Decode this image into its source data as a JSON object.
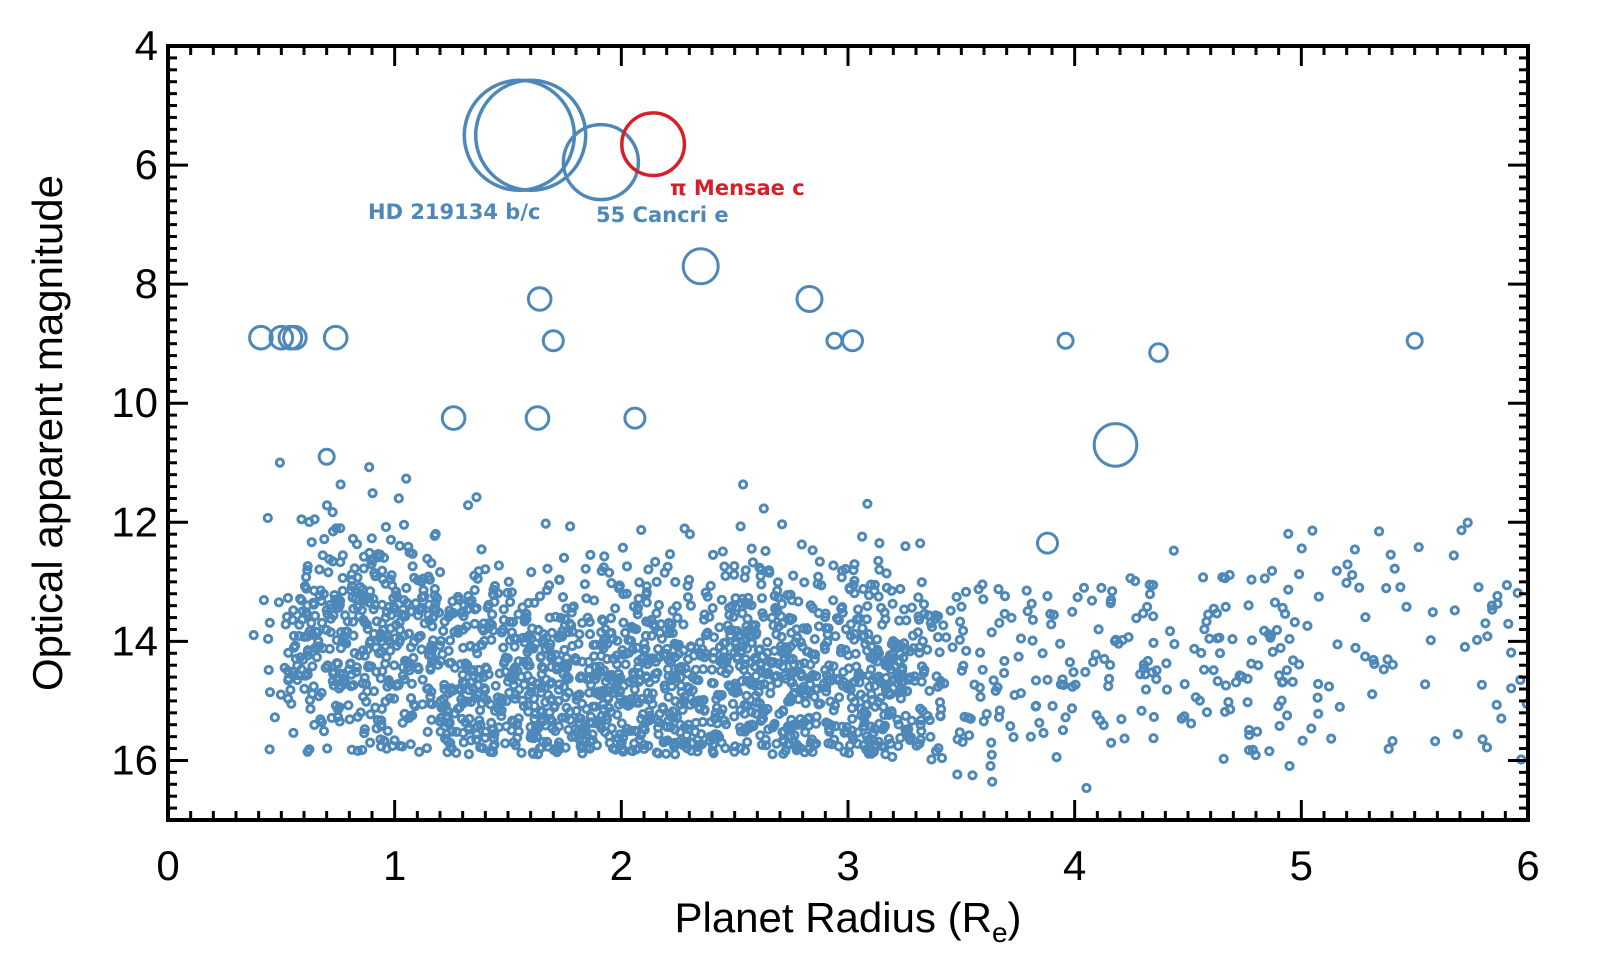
{
  "chart_data": {
    "type": "scatter",
    "title": "",
    "xlabel": "Planet Radius (R",
    "xlabel_sub": "e",
    "xlabel_close": ")",
    "ylabel": "Optical apparent magnitude",
    "xlim": [
      0,
      6
    ],
    "ylim": [
      17,
      4
    ],
    "y_inverted": true,
    "x_ticks": [
      "0",
      "1",
      "2",
      "3",
      "4",
      "5",
      "6"
    ],
    "y_ticks": [
      "4",
      "6",
      "8",
      "10",
      "12",
      "14",
      "16"
    ],
    "grid": false,
    "colors": {
      "points": "#4d88b8",
      "highlight": "#d91e2a",
      "axis": "#000000"
    },
    "highlighted": [
      {
        "label": "HD 219134 b/c",
        "color": "#4d88b8",
        "points": [
          {
            "x": 1.55,
            "y": 5.5,
            "size": 2.2
          },
          {
            "x": 1.6,
            "y": 5.5,
            "size": 2.2
          }
        ]
      },
      {
        "label": "55 Cancri e",
        "color": "#4d88b8",
        "points": [
          {
            "x": 1.91,
            "y": 5.95,
            "size": 1.5
          }
        ]
      },
      {
        "label": "π Mensae c",
        "color": "#d91e2a",
        "points": [
          {
            "x": 2.14,
            "y": 5.65,
            "size": 1.25
          }
        ]
      }
    ],
    "named_points": [
      {
        "x": 2.35,
        "y": 7.7,
        "size": 0.7
      },
      {
        "x": 1.64,
        "y": 8.25,
        "size": 0.45
      },
      {
        "x": 2.83,
        "y": 8.25,
        "size": 0.5
      },
      {
        "x": 0.41,
        "y": 8.9,
        "size": 0.45
      },
      {
        "x": 0.5,
        "y": 8.9,
        "size": 0.45
      },
      {
        "x": 0.54,
        "y": 8.9,
        "size": 0.45
      },
      {
        "x": 0.56,
        "y": 8.9,
        "size": 0.45
      },
      {
        "x": 0.74,
        "y": 8.9,
        "size": 0.45
      },
      {
        "x": 1.7,
        "y": 8.95,
        "size": 0.4
      },
      {
        "x": 3.02,
        "y": 8.95,
        "size": 0.4
      },
      {
        "x": 2.94,
        "y": 8.95,
        "size": 0.3
      },
      {
        "x": 3.96,
        "y": 8.95,
        "size": 0.3
      },
      {
        "x": 4.37,
        "y": 9.15,
        "size": 0.35
      },
      {
        "x": 5.5,
        "y": 8.95,
        "size": 0.3
      },
      {
        "x": 1.26,
        "y": 10.25,
        "size": 0.45
      },
      {
        "x": 1.63,
        "y": 10.25,
        "size": 0.45
      },
      {
        "x": 2.06,
        "y": 10.25,
        "size": 0.4
      },
      {
        "x": 4.18,
        "y": 10.7,
        "size": 0.85
      },
      {
        "x": 0.7,
        "y": 10.9,
        "size": 0.3
      },
      {
        "x": 3.88,
        "y": 12.35,
        "size": 0.4
      }
    ],
    "bulk_seed": 2024,
    "bulk_points_count": 2200
  }
}
